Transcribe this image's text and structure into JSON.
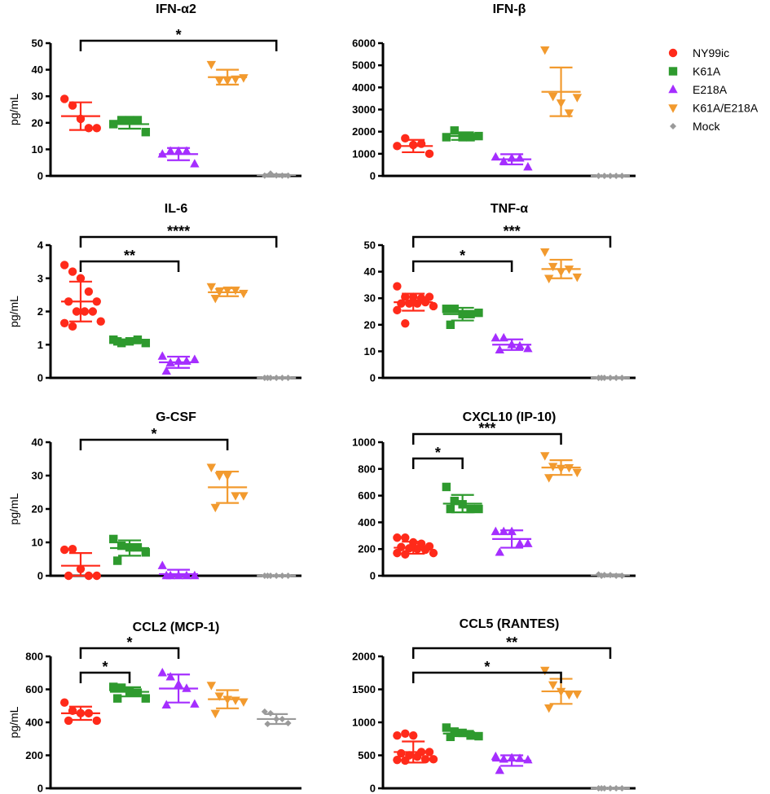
{
  "legend": {
    "position": "right",
    "entries": [
      {
        "name": "NY99ic",
        "color": "#ff2a1a",
        "marker": "circle"
      },
      {
        "name": "K61A",
        "color": "#2e9a2e",
        "marker": "square"
      },
      {
        "name": "E218A",
        "color": "#a52eff",
        "marker": "triangle-up"
      },
      {
        "name": "K61A/E218A",
        "color": "#f29a2e",
        "marker": "triangle-down"
      },
      {
        "name": "Mock",
        "color": "#9a9a9a",
        "marker": "diamond"
      }
    ]
  },
  "chart_data": [
    {
      "type": "scatter",
      "title": "IFN-α2",
      "ylabel": "pg/mL",
      "ylim": [
        0,
        50
      ],
      "yticks": [
        0,
        10,
        20,
        30,
        40,
        50
      ],
      "groups": [
        {
          "name": "NY99ic",
          "mean": 22.5,
          "sd": 5.2,
          "values": [
            29,
            26.5,
            21.5,
            18,
            18
          ]
        },
        {
          "name": "K61A",
          "mean": 19.5,
          "sd": 1.7,
          "values": [
            19.5,
            21,
            21,
            21,
            16.5
          ]
        },
        {
          "name": "E218A",
          "mean": 8.2,
          "sd": 2.3,
          "values": [
            8.2,
            9.3,
            9.3,
            9.3,
            4.5
          ]
        },
        {
          "name": "K61A/E218A",
          "mean": 37.2,
          "sd": 2.8,
          "values": [
            42,
            36,
            36,
            36.5,
            37
          ]
        },
        {
          "name": "Mock",
          "mean": 0.3,
          "sd": 0.3,
          "values": [
            0.1,
            0.9,
            0.2,
            0.1,
            0.1
          ]
        }
      ],
      "significance": [
        {
          "from": "NY99ic",
          "to": "Mock",
          "label": "*"
        }
      ]
    },
    {
      "type": "scatter",
      "title": "IFN-β",
      "ylabel": "",
      "ylim": [
        0,
        6000
      ],
      "yticks": [
        0,
        1000,
        2000,
        3000,
        4000,
        5000,
        6000
      ],
      "groups": [
        {
          "name": "NY99ic",
          "mean": 1350,
          "sd": 280,
          "values": [
            1350,
            1700,
            1400,
            1450,
            1000
          ]
        },
        {
          "name": "K61A",
          "mean": 1800,
          "sd": 170,
          "values": [
            1750,
            2050,
            1750,
            1750,
            1800
          ]
        },
        {
          "name": "E218A",
          "mean": 750,
          "sd": 230,
          "values": [
            850,
            650,
            800,
            800,
            400
          ]
        },
        {
          "name": "K61A/E218A",
          "mean": 3800,
          "sd": 1100,
          "values": [
            5700,
            3600,
            3300,
            2850,
            3550
          ]
        },
        {
          "name": "Mock",
          "mean": 0,
          "sd": 0,
          "values": [
            0,
            0,
            0,
            0,
            0
          ]
        }
      ],
      "significance": []
    },
    {
      "type": "scatter",
      "title": "IL-6",
      "ylabel": "pg/mL",
      "ylim": [
        0,
        4
      ],
      "yticks": [
        0,
        1,
        2,
        3,
        4
      ],
      "groups": [
        {
          "name": "NY99ic",
          "mean": 2.3,
          "sd": 0.6,
          "values": [
            3.4,
            3.2,
            3.0,
            2.6,
            2.3,
            2.3,
            2.0,
            2.0,
            2.0,
            1.7,
            1.65,
            1.55
          ]
        },
        {
          "name": "K61A",
          "mean": 1.1,
          "sd": 0.06,
          "values": [
            1.15,
            1.05,
            1.1,
            1.15,
            1.05,
            1.1
          ]
        },
        {
          "name": "E218A",
          "mean": 0.47,
          "sd": 0.17,
          "values": [
            0.65,
            0.45,
            0.5,
            0.5,
            0.55,
            0.2
          ]
        },
        {
          "name": "K61A/E218A",
          "mean": 2.58,
          "sd": 0.12,
          "values": [
            2.75,
            2.6,
            2.65,
            2.65,
            2.55,
            2.4
          ]
        },
        {
          "name": "Mock",
          "mean": 0,
          "sd": 0,
          "values": [
            0,
            0,
            0,
            0,
            0,
            0
          ]
        }
      ],
      "significance": [
        {
          "from": "NY99ic",
          "to": "E218A",
          "label": "**"
        },
        {
          "from": "NY99ic",
          "to": "Mock",
          "label": "****"
        }
      ]
    },
    {
      "type": "scatter",
      "title": "TNF-α",
      "ylabel": "",
      "ylim": [
        0,
        50
      ],
      "yticks": [
        0,
        10,
        20,
        30,
        40,
        50
      ],
      "groups": [
        {
          "name": "NY99ic",
          "mean": 28.5,
          "sd": 3.2,
          "values": [
            34.5,
            30.5,
            30.5,
            30,
            30.5,
            28,
            28,
            28,
            28.5,
            27,
            25.5,
            20.5
          ]
        },
        {
          "name": "K61A",
          "mean": 24,
          "sd": 2.4,
          "values": [
            26,
            26,
            24,
            24,
            24.5,
            20
          ]
        },
        {
          "name": "E218A",
          "mean": 12.5,
          "sd": 2.0,
          "values": [
            15,
            15,
            12.5,
            12,
            11,
            10.5
          ]
        },
        {
          "name": "K61A/E218A",
          "mean": 41,
          "sd": 3.5,
          "values": [
            47.5,
            42,
            40,
            41,
            38,
            37.5
          ]
        },
        {
          "name": "Mock",
          "mean": 0,
          "sd": 0,
          "values": [
            0,
            0,
            0,
            0,
            0,
            0
          ]
        }
      ],
      "significance": [
        {
          "from": "NY99ic",
          "to": "E218A",
          "label": "*"
        },
        {
          "from": "NY99ic",
          "to": "Mock",
          "label": "***"
        }
      ]
    },
    {
      "type": "scatter",
      "title": "G-CSF",
      "ylabel": "pg/mL",
      "ylim": [
        0,
        40
      ],
      "yticks": [
        0,
        10,
        20,
        30,
        40
      ],
      "groups": [
        {
          "name": "NY99ic",
          "mean": 3,
          "sd": 3.8,
          "values": [
            7.8,
            8,
            2,
            0,
            0,
            0
          ]
        },
        {
          "name": "K61A",
          "mean": 8.3,
          "sd": 2.3,
          "values": [
            11,
            9,
            8.5,
            8.5,
            7,
            4.5
          ]
        },
        {
          "name": "E218A",
          "mean": 0.5,
          "sd": 1.3,
          "values": [
            3,
            0,
            0,
            0,
            0,
            0
          ]
        },
        {
          "name": "K61A/E218A",
          "mean": 26.5,
          "sd": 4.7,
          "values": [
            32.5,
            30,
            30,
            24,
            24,
            20.5
          ]
        },
        {
          "name": "Mock",
          "mean": 0,
          "sd": 0,
          "values": [
            0,
            0,
            0,
            0,
            0,
            0
          ]
        }
      ],
      "significance": [
        {
          "from": "NY99ic",
          "to": "K61A/E218A",
          "label": "*"
        }
      ]
    },
    {
      "type": "scatter",
      "title": "CXCL10 (IP-10)",
      "ylabel": "",
      "ylim": [
        0,
        1000
      ],
      "yticks": [
        0,
        200,
        400,
        600,
        800,
        1000
      ],
      "groups": [
        {
          "name": "NY99ic",
          "mean": 210,
          "sd": 45,
          "values": [
            285,
            285,
            250,
            240,
            220,
            215,
            205,
            200,
            195,
            170,
            170,
            160
          ]
        },
        {
          "name": "K61A",
          "mean": 540,
          "sd": 65,
          "values": [
            665,
            560,
            535,
            500,
            500,
            500
          ]
        },
        {
          "name": "E218A",
          "mean": 275,
          "sd": 65,
          "values": [
            330,
            330,
            330,
            240,
            240,
            175
          ]
        },
        {
          "name": "K61A/E218A",
          "mean": 810,
          "sd": 55,
          "values": [
            900,
            820,
            805,
            810,
            775,
            735
          ]
        },
        {
          "name": "Mock",
          "mean": 5,
          "sd": 5,
          "values": [
            10,
            5,
            5,
            0,
            0,
            0
          ]
        }
      ],
      "significance": [
        {
          "from": "NY99ic",
          "to": "K61A",
          "label": "*"
        },
        {
          "from": "NY99ic",
          "to": "K61A/E218A",
          "label": "***"
        }
      ]
    },
    {
      "type": "scatter",
      "title": "CCL2 (MCP-1)",
      "ylabel": "pg/mL",
      "ylim": [
        0,
        800
      ],
      "yticks": [
        0,
        200,
        400,
        600,
        800
      ],
      "groups": [
        {
          "name": "NY99ic",
          "mean": 455,
          "sd": 40,
          "values": [
            520,
            470,
            455,
            455,
            410,
            410
          ]
        },
        {
          "name": "K61A",
          "mean": 585,
          "sd": 28,
          "values": [
            615,
            610,
            585,
            580,
            545,
            545
          ]
        },
        {
          "name": "E218A",
          "mean": 605,
          "sd": 85,
          "values": [
            700,
            675,
            630,
            605,
            510,
            505
          ]
        },
        {
          "name": "K61A/E218A",
          "mean": 540,
          "sd": 55,
          "values": [
            625,
            560,
            540,
            535,
            525,
            455
          ]
        },
        {
          "name": "Mock",
          "mean": 420,
          "sd": 30,
          "values": [
            465,
            455,
            420,
            420,
            395,
            390
          ]
        }
      ],
      "significance": [
        {
          "from": "NY99ic",
          "to": "K61A",
          "label": "*"
        },
        {
          "from": "NY99ic",
          "to": "E218A",
          "label": "*"
        }
      ]
    },
    {
      "type": "scatter",
      "title": "CCL5 (RANTES)",
      "ylabel": "",
      "ylim": [
        0,
        2000
      ],
      "yticks": [
        0,
        500,
        1000,
        1500,
        2000
      ],
      "groups": [
        {
          "name": "NY99ic",
          "mean": 550,
          "sd": 160,
          "values": [
            800,
            830,
            800,
            550,
            550,
            530,
            500,
            480,
            440,
            440,
            430,
            420
          ]
        },
        {
          "name": "K61A",
          "mean": 830,
          "sd": 40,
          "values": [
            920,
            860,
            840,
            800,
            790,
            780
          ]
        },
        {
          "name": "E218A",
          "mean": 420,
          "sd": 80,
          "values": [
            480,
            440,
            460,
            450,
            430,
            270
          ]
        },
        {
          "name": "K61A/E218A",
          "mean": 1470,
          "sd": 190,
          "values": [
            1790,
            1570,
            1470,
            1420,
            1430,
            1220
          ]
        },
        {
          "name": "Mock",
          "mean": 0,
          "sd": 0,
          "values": [
            0,
            0,
            0,
            0,
            0,
            0
          ]
        }
      ],
      "significance": [
        {
          "from": "NY99ic",
          "to": "K61A/E218A",
          "label": "*"
        },
        {
          "from": "NY99ic",
          "to": "Mock",
          "label": "**"
        }
      ]
    }
  ]
}
